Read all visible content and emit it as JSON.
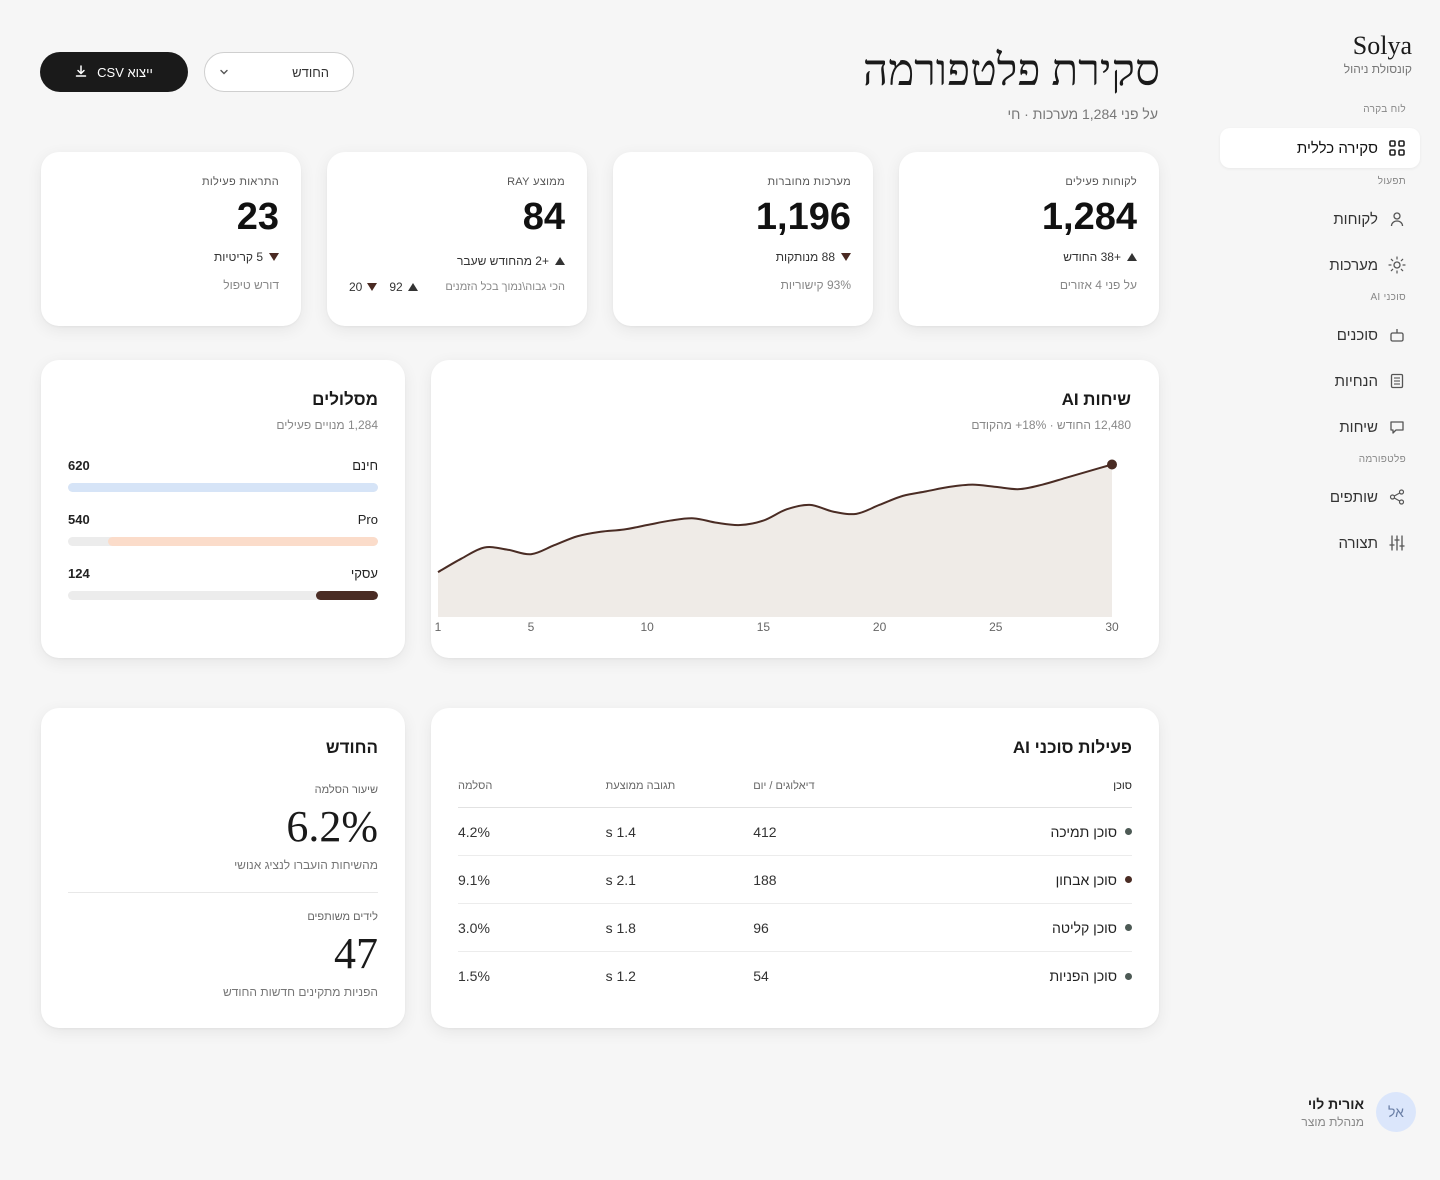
{
  "brand": {
    "name": "Solya",
    "subtitle": "קונסולת ניהול"
  },
  "nav": {
    "sections": [
      "לוח בקרה",
      "תפעול",
      "סוכני AI",
      "פלטפורמה"
    ],
    "items": [
      {
        "label": "סקירה כללית",
        "icon": "grid-icon",
        "active": true
      },
      {
        "label": "לקוחות",
        "icon": "user-icon"
      },
      {
        "label": "מערכות",
        "icon": "sun-icon"
      },
      {
        "label": "סוכנים",
        "icon": "robot-icon"
      },
      {
        "label": "הנחיות",
        "icon": "document-icon"
      },
      {
        "label": "שיחות",
        "icon": "chat-icon"
      },
      {
        "label": "שותפים",
        "icon": "share-icon"
      },
      {
        "label": "תצורה",
        "icon": "sliders-icon"
      }
    ]
  },
  "user": {
    "initials": "אל",
    "name": "אורית לוי",
    "role": "מנהלת מוצר"
  },
  "header": {
    "title": "סקירת פלטפורמה",
    "subtitle": "על פני 1,284 מערכות · חי",
    "export_label": "ייצוא CSV",
    "period_label": "החודש"
  },
  "kpis": [
    {
      "label": "לקוחות פעילים",
      "value": "1,284",
      "delta": "+38 החודש",
      "delta_dir": "up",
      "foot": "על פני 4 אזורים"
    },
    {
      "label": "מערכות מחוברות",
      "value": "1,196",
      "delta": "88 מנותקות",
      "delta_dir": "down",
      "foot": "93% קישוריות"
    },
    {
      "label": "ממוצע RAY",
      "value": "84",
      "delta": "+2 מהחודש שעבר",
      "delta_dir": "up",
      "foot": "הכי גבוה\\נמוך בכל הזמנים",
      "high": "92",
      "low": "20"
    },
    {
      "label": "התראות פעילות",
      "value": "23",
      "delta": "5 קריטיות",
      "delta_dir": "down",
      "foot": "דורש טיפול"
    }
  ],
  "plans": {
    "title": "מסלולים",
    "subtitle": "1,284 מנויים פעילים",
    "items": [
      {
        "name": "חינם",
        "count": "620",
        "fraction": 1.0,
        "color": "#d6e4f7"
      },
      {
        "name": "Pro",
        "count": "540",
        "fraction": 0.87,
        "color": "#fbdcca"
      },
      {
        "name": "עסקי",
        "count": "124",
        "fraction": 0.2,
        "color": "#4a2c24"
      }
    ]
  },
  "chart": {
    "title": "שיחות AI",
    "subtitle": "12,480 החודש · 18%+ מהקודם"
  },
  "chart_data": {
    "type": "area",
    "x": [
      1,
      2,
      3,
      4,
      5,
      6,
      7,
      8,
      9,
      10,
      11,
      12,
      13,
      14,
      15,
      16,
      17,
      18,
      19,
      20,
      21,
      22,
      23,
      24,
      25,
      26,
      27,
      28,
      29,
      30
    ],
    "values": [
      20,
      26,
      31,
      30,
      28,
      32,
      36,
      38,
      39,
      41,
      43,
      44,
      42,
      41,
      43,
      48,
      50,
      47,
      46,
      50,
      54,
      56,
      58,
      59,
      58,
      57,
      59,
      62,
      65,
      68
    ],
    "xticks": [
      "1",
      "5",
      "10",
      "15",
      "20",
      "25",
      "30"
    ],
    "xtick_values": [
      1,
      5,
      10,
      15,
      20,
      25,
      30
    ],
    "ylim": [
      0,
      70
    ],
    "color": "#4a2c24",
    "fill": "#efebe7"
  },
  "month": {
    "title": "החודש",
    "metric1_label": "שיעור הסלמה",
    "metric1_value": "6.2%",
    "metric1_desc": "מהשיחות הועברו לנציג אנושי",
    "metric2_label": "לידים משותפים",
    "metric2_value": "47",
    "metric2_desc": "הפניות מתקינים חדשות החודש"
  },
  "agents": {
    "title": "פעילות סוכני AI",
    "headers": {
      "agent": "סוכן",
      "dialogs": "דיאלוגים / יום",
      "response": "תגובה ממוצעת",
      "escalation": "הסלמה"
    },
    "rows": [
      {
        "name": "סוכן תמיכה",
        "dialogs": "412",
        "response": "1.4 s",
        "escalation": "4.2%",
        "color": "#4d5a55"
      },
      {
        "name": "סוכן אבחון",
        "dialogs": "188",
        "response": "2.1 s",
        "escalation": "9.1%",
        "color": "#4a2c24"
      },
      {
        "name": "סוכן קליטה",
        "dialogs": "96",
        "response": "1.8 s",
        "escalation": "3.0%",
        "color": "#4d5a55"
      },
      {
        "name": "סוכן הפניות",
        "dialogs": "54",
        "response": "1.2 s",
        "escalation": "1.5%",
        "color": "#4d5a55"
      }
    ]
  }
}
